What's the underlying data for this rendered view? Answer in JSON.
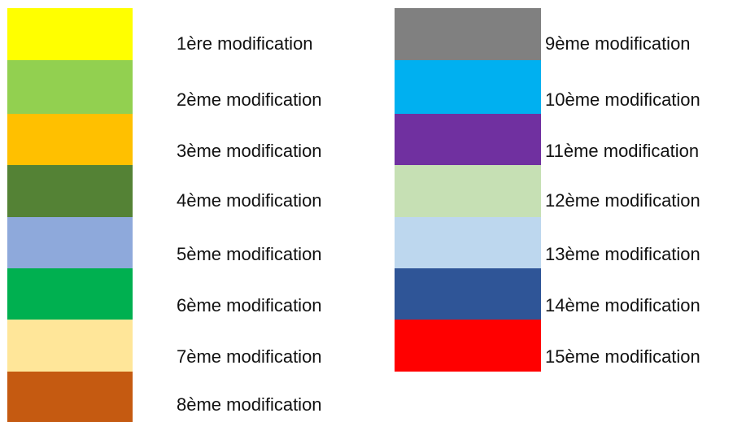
{
  "legend": {
    "left": [
      {
        "label": "1ère modification",
        "color": "#FFFF00"
      },
      {
        "label": "2ème modification",
        "color": "#92D050"
      },
      {
        "label": "3ème modification",
        "color": "#FFC000"
      },
      {
        "label": "4ème modification",
        "color": "#548235"
      },
      {
        "label": "5ème modification",
        "color": "#8EA9DB"
      },
      {
        "label": "6ème modification",
        "color": "#00B050"
      },
      {
        "label": "7ème modification",
        "color": "#FFE699"
      },
      {
        "label": "8ème modification",
        "color": "#C55A11"
      }
    ],
    "right": [
      {
        "label": "9ème modification",
        "color": "#808080"
      },
      {
        "label": "10ème modification",
        "color": "#00B0F0"
      },
      {
        "label": "11ème modification",
        "color": "#7030A0"
      },
      {
        "label": "12ème modification",
        "color": "#C6E0B4"
      },
      {
        "label": "13ème modification",
        "color": "#BDD7EE"
      },
      {
        "label": "14ème modification",
        "color": "#2F5597"
      },
      {
        "label": "15ème modification",
        "color": "#FF0000"
      }
    ]
  }
}
